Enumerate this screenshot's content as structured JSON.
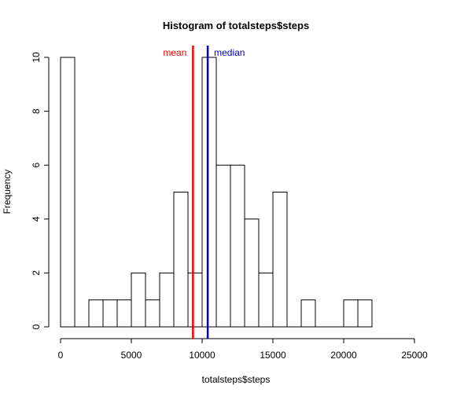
{
  "chart_data": {
    "type": "bar",
    "title": "Histogram of totalsteps$steps",
    "xlabel": "totalsteps$steps",
    "ylabel": "Frequency",
    "xlim": [
      0,
      25000
    ],
    "ylim": [
      0,
      10
    ],
    "x_ticks": [
      0,
      5000,
      10000,
      15000,
      20000,
      25000
    ],
    "y_ticks": [
      0,
      2,
      4,
      6,
      8,
      10
    ],
    "bin_width": 1000,
    "bins": [
      {
        "start": 0,
        "end": 1000,
        "count": 10
      },
      {
        "start": 1000,
        "end": 2000,
        "count": 0
      },
      {
        "start": 2000,
        "end": 3000,
        "count": 1
      },
      {
        "start": 3000,
        "end": 4000,
        "count": 1
      },
      {
        "start": 4000,
        "end": 5000,
        "count": 1
      },
      {
        "start": 5000,
        "end": 6000,
        "count": 2
      },
      {
        "start": 6000,
        "end": 7000,
        "count": 1
      },
      {
        "start": 7000,
        "end": 8000,
        "count": 2
      },
      {
        "start": 8000,
        "end": 9000,
        "count": 5
      },
      {
        "start": 9000,
        "end": 10000,
        "count": 2
      },
      {
        "start": 10000,
        "end": 11000,
        "count": 10
      },
      {
        "start": 11000,
        "end": 12000,
        "count": 6
      },
      {
        "start": 12000,
        "end": 13000,
        "count": 6
      },
      {
        "start": 13000,
        "end": 14000,
        "count": 4
      },
      {
        "start": 14000,
        "end": 15000,
        "count": 2
      },
      {
        "start": 15000,
        "end": 16000,
        "count": 5
      },
      {
        "start": 16000,
        "end": 17000,
        "count": 0
      },
      {
        "start": 17000,
        "end": 18000,
        "count": 1
      },
      {
        "start": 18000,
        "end": 19000,
        "count": 0
      },
      {
        "start": 19000,
        "end": 20000,
        "count": 0
      },
      {
        "start": 20000,
        "end": 21000,
        "count": 1
      },
      {
        "start": 21000,
        "end": 22000,
        "count": 1
      }
    ],
    "reference_lines": [
      {
        "label": "mean",
        "value": 9354,
        "color": "#ff0000"
      },
      {
        "label": "median",
        "value": 10395,
        "color": "#0000cd"
      }
    ],
    "bar_fill": "#ffffff",
    "bar_stroke": "#000000",
    "grid": false,
    "legend": "none"
  }
}
